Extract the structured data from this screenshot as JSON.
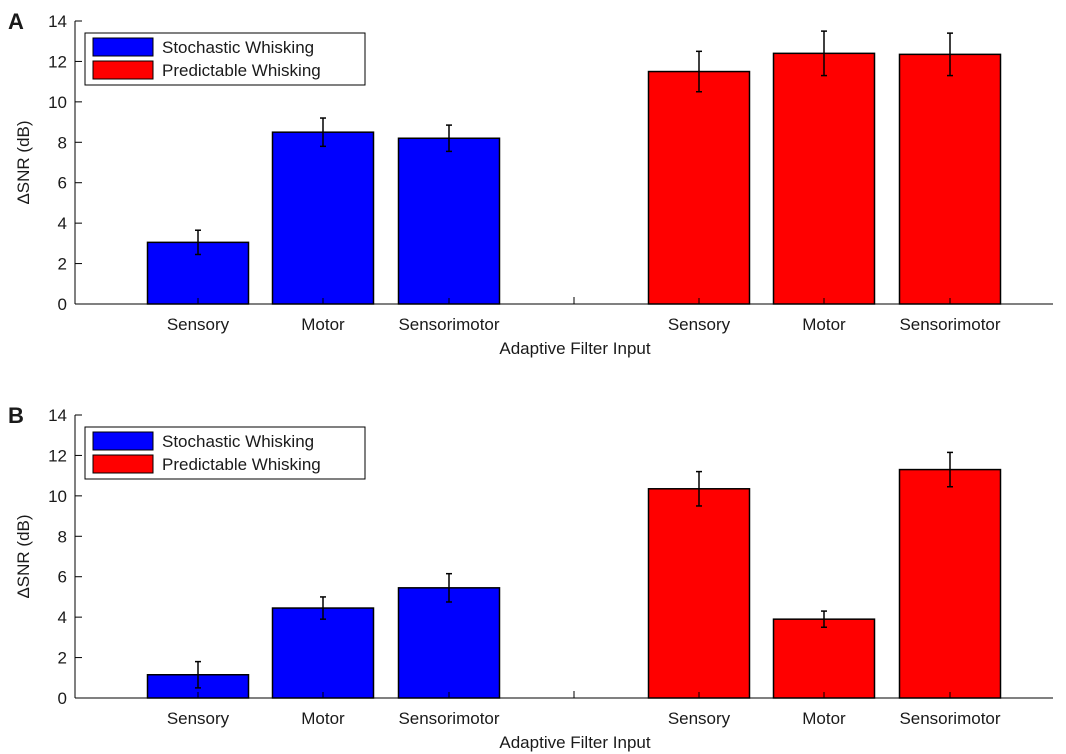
{
  "colors": {
    "stochastic": "#0000ff",
    "predictable": "#ff0000",
    "axis": "#000000",
    "text": "#1a1a1a"
  },
  "chart_data": [
    {
      "panel_label": "A",
      "type": "bar",
      "xlabel": "Adaptive Filter Input",
      "ylabel": "ΔSNR (dB)",
      "ylim": [
        0,
        14
      ],
      "yticks": [
        0,
        2,
        4,
        6,
        8,
        10,
        12,
        14
      ],
      "grid": false,
      "legend": "top-left",
      "categories": [
        "Sensory",
        "Motor",
        "Sensorimotor"
      ],
      "series": [
        {
          "name": "Stochastic Whisking",
          "color": "#0000ff",
          "values": [
            3.05,
            8.5,
            8.2
          ],
          "errors": [
            0.6,
            0.7,
            0.65
          ]
        },
        {
          "name": "Predictable Whisking",
          "color": "#ff0000",
          "values": [
            11.5,
            12.4,
            12.35
          ],
          "errors": [
            1.0,
            1.1,
            1.05
          ]
        }
      ]
    },
    {
      "panel_label": "B",
      "type": "bar",
      "xlabel": "Adaptive Filter Input",
      "ylabel": "ΔSNR (dB)",
      "ylim": [
        0,
        14
      ],
      "yticks": [
        0,
        2,
        4,
        6,
        8,
        10,
        12,
        14
      ],
      "grid": false,
      "legend": "top-left",
      "categories": [
        "Sensory",
        "Motor",
        "Sensorimotor"
      ],
      "series": [
        {
          "name": "Stochastic Whisking",
          "color": "#0000ff",
          "values": [
            1.15,
            4.45,
            5.45
          ],
          "errors": [
            0.65,
            0.55,
            0.7
          ]
        },
        {
          "name": "Predictable Whisking",
          "color": "#ff0000",
          "values": [
            10.35,
            3.9,
            11.3
          ],
          "errors": [
            0.85,
            0.4,
            0.85
          ]
        }
      ]
    }
  ]
}
